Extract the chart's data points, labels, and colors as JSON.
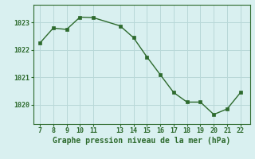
{
  "x": [
    7,
    8,
    9,
    10,
    11,
    13,
    14,
    15,
    16,
    17,
    18,
    19,
    20,
    21,
    22
  ],
  "y": [
    1022.25,
    1022.8,
    1022.75,
    1023.2,
    1023.18,
    1022.88,
    1022.45,
    1021.75,
    1021.1,
    1020.45,
    1020.1,
    1020.1,
    1019.65,
    1019.85,
    1020.45
  ],
  "xticks": [
    7,
    8,
    9,
    10,
    11,
    13,
    14,
    15,
    16,
    17,
    18,
    19,
    20,
    21,
    22
  ],
  "yticks": [
    1020,
    1021,
    1022,
    1023
  ],
  "ylim": [
    1019.3,
    1023.65
  ],
  "xlim": [
    6.5,
    22.7
  ],
  "line_color": "#2d6a2d",
  "marker_color": "#2d6a2d",
  "bg_color": "#d9f0f0",
  "grid_color": "#b8d8d8",
  "xlabel": "Graphe pression niveau de la mer (hPa)",
  "xlabel_color": "#2d6a2d",
  "tick_color": "#2d6a2d",
  "border_color": "#2d6a2d",
  "tick_fontsize": 6.0,
  "xlabel_fontsize": 7.0
}
